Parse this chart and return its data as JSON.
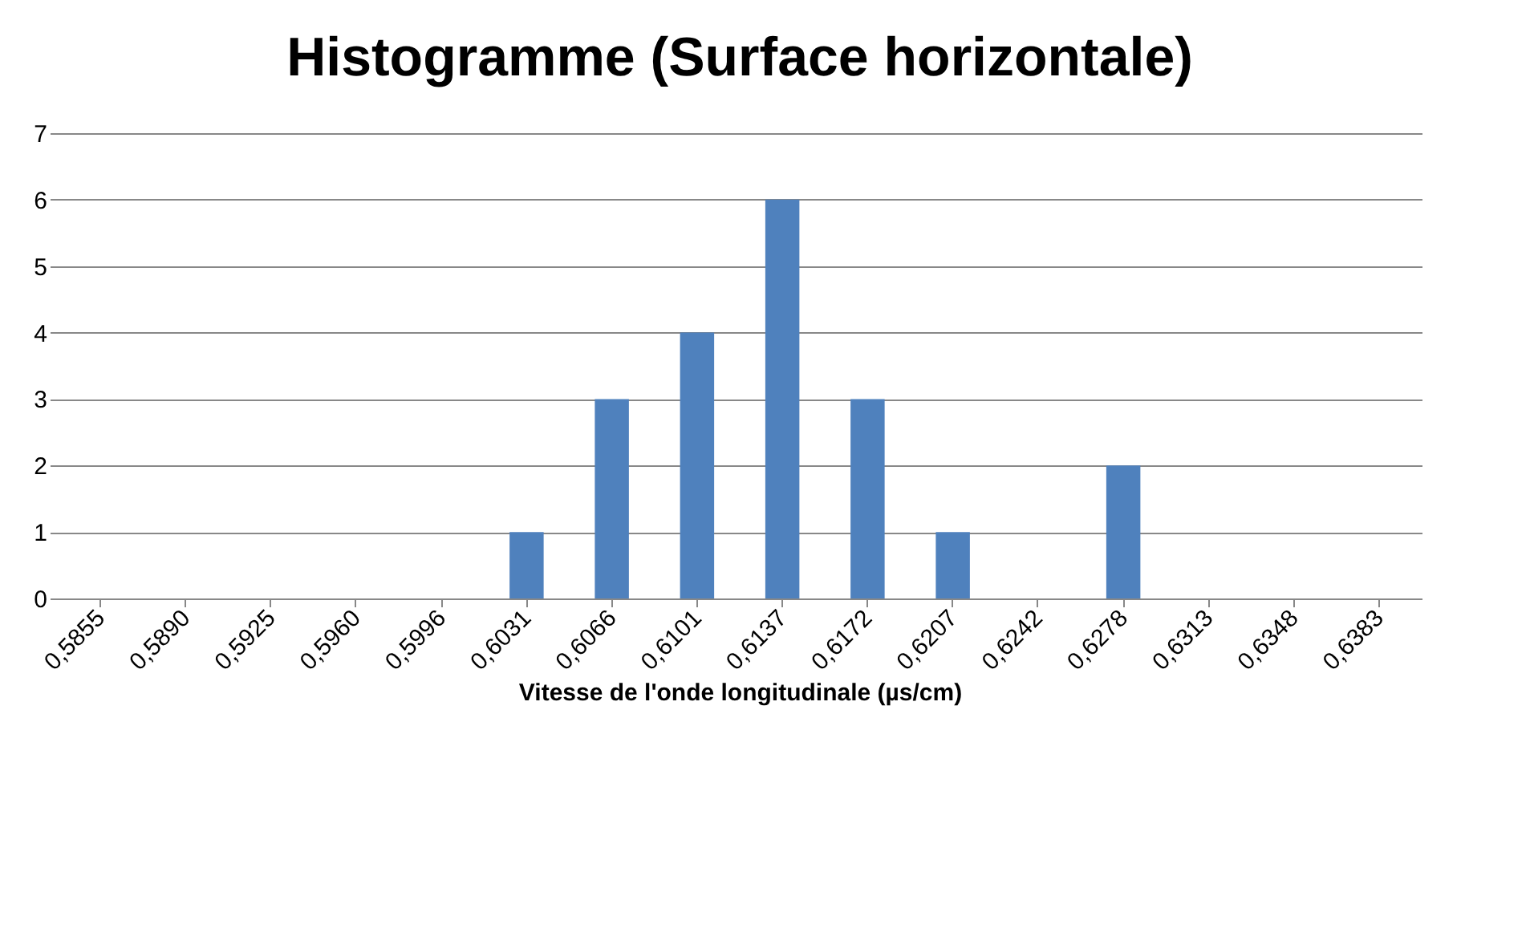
{
  "chart_data": {
    "type": "bar",
    "title": "Histogramme (Surface horizontale)",
    "xlabel": "Vitesse de l'onde longitudinale (µs/cm)",
    "categories": [
      "0,5855",
      "0,5890",
      "0,5925",
      "0,5960",
      "0,5996",
      "0,6031",
      "0,6066",
      "0,6101",
      "0,6137",
      "0,6172",
      "0,6207",
      "0,6242",
      "0,6278",
      "0,6313",
      "0,6348",
      "0,6383"
    ],
    "values": [
      0,
      0,
      0,
      0,
      0,
      1,
      3,
      4,
      6,
      3,
      1,
      0,
      2,
      0,
      0,
      0
    ],
    "color": "#4f81bd",
    "ylim": [
      0,
      7
    ],
    "yticks": [
      0,
      1,
      2,
      3,
      4,
      5,
      6,
      7
    ],
    "grid": "y"
  }
}
